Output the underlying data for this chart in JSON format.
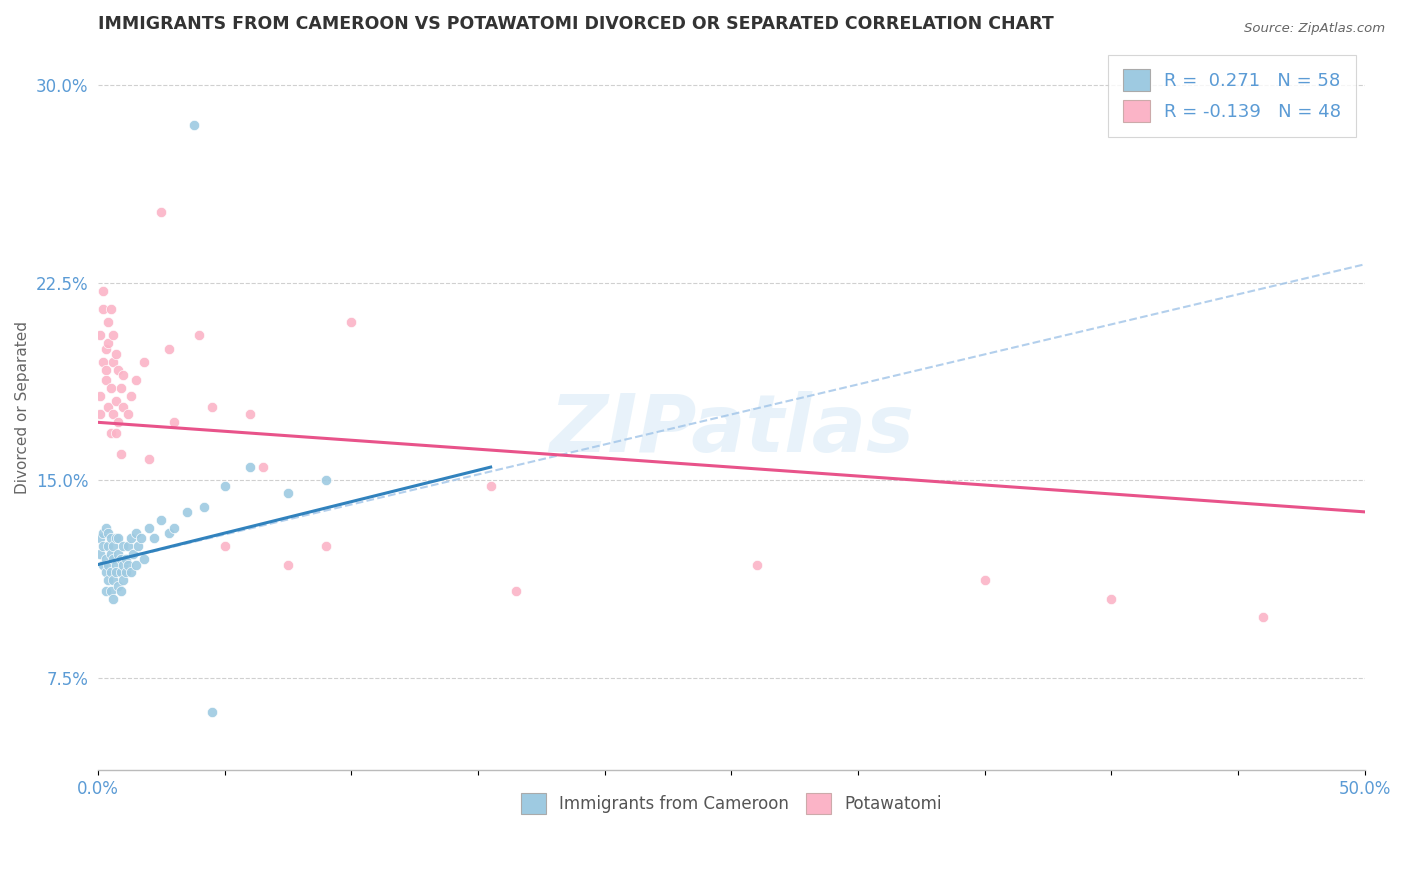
{
  "title": "IMMIGRANTS FROM CAMEROON VS POTAWATOMI DIVORCED OR SEPARATED CORRELATION CHART",
  "source_text": "Source: ZipAtlas.com",
  "ylabel": "Divorced or Separated",
  "xlim": [
    0.0,
    0.5
  ],
  "ylim": [
    0.04,
    0.315
  ],
  "xticks": [
    0.0,
    0.05,
    0.1,
    0.15,
    0.2,
    0.25,
    0.3,
    0.35,
    0.4,
    0.45,
    0.5
  ],
  "xticklabels": [
    "0.0%",
    "",
    "",
    "",
    "",
    "",
    "",
    "",
    "",
    "",
    "50.0%"
  ],
  "yticks": [
    0.075,
    0.15,
    0.225,
    0.3
  ],
  "yticklabels": [
    "7.5%",
    "15.0%",
    "22.5%",
    "30.0%"
  ],
  "blue_color": "#9ecae1",
  "pink_color": "#fbb4c7",
  "blue_line_color": "#3182bd",
  "pink_line_color": "#e8538a",
  "blue_dash_color": "#a0c4e8",
  "axis_color": "#5b9bd5",
  "watermark": "ZIPatlas",
  "blue_line": [
    [
      0.0,
      0.118
    ],
    [
      0.155,
      0.155
    ]
  ],
  "blue_dash_line": [
    [
      0.0,
      0.118
    ],
    [
      0.5,
      0.232
    ]
  ],
  "pink_line": [
    [
      0.0,
      0.172
    ],
    [
      0.5,
      0.138
    ]
  ],
  "blue_dots": [
    [
      0.001,
      0.128
    ],
    [
      0.001,
      0.122
    ],
    [
      0.002,
      0.13
    ],
    [
      0.002,
      0.118
    ],
    [
      0.002,
      0.125
    ],
    [
      0.003,
      0.12
    ],
    [
      0.003,
      0.132
    ],
    [
      0.003,
      0.115
    ],
    [
      0.003,
      0.108
    ],
    [
      0.004,
      0.125
    ],
    [
      0.004,
      0.118
    ],
    [
      0.004,
      0.112
    ],
    [
      0.004,
      0.13
    ],
    [
      0.005,
      0.122
    ],
    [
      0.005,
      0.115
    ],
    [
      0.005,
      0.128
    ],
    [
      0.005,
      0.108
    ],
    [
      0.006,
      0.12
    ],
    [
      0.006,
      0.112
    ],
    [
      0.006,
      0.125
    ],
    [
      0.006,
      0.105
    ],
    [
      0.007,
      0.118
    ],
    [
      0.007,
      0.128
    ],
    [
      0.007,
      0.115
    ],
    [
      0.008,
      0.11
    ],
    [
      0.008,
      0.122
    ],
    [
      0.008,
      0.128
    ],
    [
      0.009,
      0.115
    ],
    [
      0.009,
      0.12
    ],
    [
      0.009,
      0.108
    ],
    [
      0.01,
      0.118
    ],
    [
      0.01,
      0.125
    ],
    [
      0.01,
      0.112
    ],
    [
      0.011,
      0.12
    ],
    [
      0.011,
      0.115
    ],
    [
      0.012,
      0.125
    ],
    [
      0.012,
      0.118
    ],
    [
      0.013,
      0.128
    ],
    [
      0.013,
      0.115
    ],
    [
      0.014,
      0.122
    ],
    [
      0.015,
      0.13
    ],
    [
      0.015,
      0.118
    ],
    [
      0.016,
      0.125
    ],
    [
      0.017,
      0.128
    ],
    [
      0.018,
      0.12
    ],
    [
      0.02,
      0.132
    ],
    [
      0.022,
      0.128
    ],
    [
      0.025,
      0.135
    ],
    [
      0.028,
      0.13
    ],
    [
      0.03,
      0.132
    ],
    [
      0.035,
      0.138
    ],
    [
      0.038,
      0.285
    ],
    [
      0.042,
      0.14
    ],
    [
      0.045,
      0.062
    ],
    [
      0.05,
      0.148
    ],
    [
      0.06,
      0.155
    ],
    [
      0.075,
      0.145
    ],
    [
      0.09,
      0.15
    ]
  ],
  "pink_dots": [
    [
      0.001,
      0.205
    ],
    [
      0.001,
      0.182
    ],
    [
      0.001,
      0.175
    ],
    [
      0.002,
      0.195
    ],
    [
      0.002,
      0.215
    ],
    [
      0.002,
      0.222
    ],
    [
      0.003,
      0.188
    ],
    [
      0.003,
      0.2
    ],
    [
      0.003,
      0.192
    ],
    [
      0.004,
      0.178
    ],
    [
      0.004,
      0.21
    ],
    [
      0.004,
      0.202
    ],
    [
      0.005,
      0.185
    ],
    [
      0.005,
      0.215
    ],
    [
      0.005,
      0.168
    ],
    [
      0.006,
      0.195
    ],
    [
      0.006,
      0.205
    ],
    [
      0.006,
      0.175
    ],
    [
      0.007,
      0.18
    ],
    [
      0.007,
      0.198
    ],
    [
      0.007,
      0.168
    ],
    [
      0.008,
      0.172
    ],
    [
      0.008,
      0.192
    ],
    [
      0.009,
      0.185
    ],
    [
      0.009,
      0.16
    ],
    [
      0.01,
      0.178
    ],
    [
      0.01,
      0.19
    ],
    [
      0.012,
      0.175
    ],
    [
      0.013,
      0.182
    ],
    [
      0.015,
      0.188
    ],
    [
      0.018,
      0.195
    ],
    [
      0.02,
      0.158
    ],
    [
      0.025,
      0.252
    ],
    [
      0.028,
      0.2
    ],
    [
      0.03,
      0.172
    ],
    [
      0.04,
      0.205
    ],
    [
      0.045,
      0.178
    ],
    [
      0.05,
      0.125
    ],
    [
      0.06,
      0.175
    ],
    [
      0.065,
      0.155
    ],
    [
      0.075,
      0.118
    ],
    [
      0.09,
      0.125
    ],
    [
      0.1,
      0.21
    ],
    [
      0.155,
      0.148
    ],
    [
      0.165,
      0.108
    ],
    [
      0.26,
      0.118
    ],
    [
      0.35,
      0.112
    ],
    [
      0.4,
      0.105
    ],
    [
      0.46,
      0.098
    ]
  ]
}
